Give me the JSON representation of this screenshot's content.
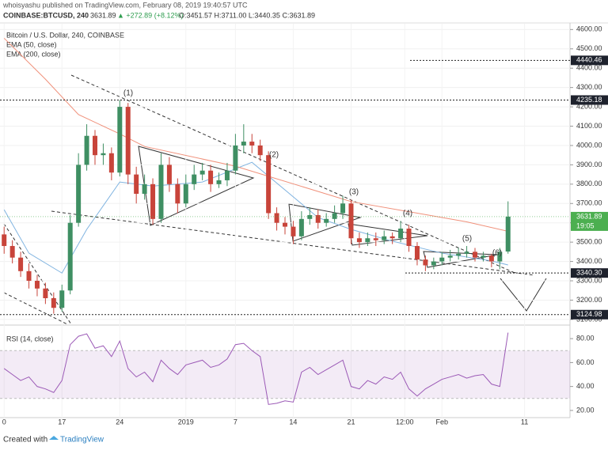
{
  "header": {
    "publisher": "whoisyashu published on TradingView.com, February 08, 2019 19:40:57 UTC",
    "symbol": "COINBASE:BTCUSD, 240",
    "last": "3631.89",
    "change": "▲ +272.89 (+8.12%)",
    "ohlc": "O:3451.57 H:3711.00 L:3440.35 C:3631.89"
  },
  "footer": {
    "created": "Created with",
    "brand": "TradingView"
  },
  "chart_data": [
    {
      "type": "candlestick",
      "title": "Bitcoin / U.S. Dollar, 240, COINBASE",
      "up_color": "#3f8f63",
      "down_color": "#c8443a",
      "open": [
        3540,
        3480,
        3420,
        3350,
        3300,
        3260,
        3210,
        3160,
        3250,
        3600,
        3900,
        4050,
        3950,
        3960,
        3860,
        4200,
        3850,
        3750,
        3800,
        3620,
        3900,
        3800,
        3700,
        3800,
        3850,
        3870,
        3800,
        3820,
        3870,
        4000,
        4020,
        4000,
        3950,
        3650,
        3600,
        3580,
        3530,
        3620,
        3640,
        3600,
        3620,
        3650,
        3700,
        3520,
        3500,
        3520,
        3510,
        3530,
        3520,
        3570,
        3480,
        3410,
        3380,
        3400,
        3420,
        3430,
        3440,
        3450,
        3420,
        3430,
        3400,
        3451.57
      ],
      "high": [
        3580,
        3510,
        3450,
        3390,
        3330,
        3290,
        3240,
        3280,
        3640,
        3960,
        4110,
        4080,
        4010,
        3990,
        4235,
        4220,
        3890,
        3850,
        3830,
        3960,
        3940,
        3830,
        3850,
        3900,
        3910,
        3900,
        3860,
        3910,
        4060,
        4110,
        4060,
        4030,
        3970,
        3680,
        3630,
        3610,
        3660,
        3680,
        3670,
        3650,
        3690,
        3740,
        3720,
        3550,
        3550,
        3550,
        3560,
        3550,
        3610,
        3590,
        3500,
        3430,
        3420,
        3450,
        3460,
        3470,
        3480,
        3470,
        3450,
        3440,
        3470,
        3711
      ],
      "low": [
        3440,
        3390,
        3320,
        3260,
        3220,
        3180,
        3130,
        3140,
        3230,
        3580,
        3870,
        3900,
        3900,
        3820,
        3840,
        3800,
        3700,
        3720,
        3590,
        3600,
        3760,
        3650,
        3680,
        3770,
        3820,
        3760,
        3780,
        3790,
        3850,
        3960,
        3960,
        3920,
        3620,
        3560,
        3540,
        3490,
        3510,
        3590,
        3570,
        3580,
        3600,
        3620,
        3490,
        3470,
        3480,
        3480,
        3490,
        3490,
        3500,
        3450,
        3380,
        3350,
        3360,
        3380,
        3400,
        3410,
        3420,
        3400,
        3400,
        3370,
        3360,
        3440.35
      ],
      "close": [
        3480,
        3420,
        3350,
        3300,
        3260,
        3210,
        3160,
        3250,
        3600,
        3900,
        4050,
        3950,
        3960,
        3860,
        4200,
        3850,
        3750,
        3800,
        3620,
        3900,
        3800,
        3700,
        3800,
        3850,
        3870,
        3800,
        3820,
        3870,
        4000,
        4020,
        4000,
        3950,
        3650,
        3600,
        3580,
        3530,
        3620,
        3640,
        3600,
        3620,
        3650,
        3700,
        3520,
        3500,
        3520,
        3510,
        3530,
        3520,
        3570,
        3480,
        3410,
        3380,
        3400,
        3420,
        3430,
        3440,
        3450,
        3420,
        3430,
        3400,
        3450,
        3631.89
      ],
      "series": [
        {
          "name": "EMA (50, close)",
          "color": "#7fb3e0",
          "x": [
            0,
            3,
            7,
            10,
            14,
            18,
            24,
            30,
            34,
            38,
            42,
            47,
            53,
            59,
            61
          ],
          "values": [
            3668,
            3443,
            3340,
            3566,
            3811,
            3790,
            3811,
            3913,
            3770,
            3627,
            3566,
            3505,
            3443,
            3403,
            3382
          ]
        },
        {
          "name": "EMA (200, close)",
          "color": "#f0907a",
          "x": [
            0,
            5,
            9,
            14,
            17,
            28,
            42,
            56,
            61
          ],
          "values": [
            4555,
            4343,
            4160,
            4060,
            3995,
            3893,
            3710,
            3605,
            3556
          ]
        }
      ],
      "xlim": [
        -0.5,
        68.5
      ],
      "ylim": [
        3075,
        4630
      ],
      "xticks": [
        {
          "value": 0,
          "label": "0"
        },
        {
          "value": 7,
          "label": "17"
        },
        {
          "value": 14,
          "label": "24"
        },
        {
          "value": 22,
          "label": "2019"
        },
        {
          "value": 28,
          "label": "7"
        },
        {
          "value": 35,
          "label": "14"
        },
        {
          "value": 42,
          "label": "21"
        },
        {
          "value": 48.5,
          "label": "12:00"
        },
        {
          "value": 53,
          "label": "Feb"
        },
        {
          "value": 63,
          "label": "11"
        }
      ],
      "yticks": [
        {
          "value": 3100,
          "label": "3100.00"
        },
        {
          "value": 3200,
          "label": "3200.00"
        },
        {
          "value": 3300,
          "label": "3300.00"
        },
        {
          "value": 3400,
          "label": "3400.00"
        },
        {
          "value": 3500,
          "label": "3500.00"
        },
        {
          "value": 3600,
          "label": "3600.00"
        },
        {
          "value": 3700,
          "label": "3700.00"
        },
        {
          "value": 3800,
          "label": "3800.00"
        },
        {
          "value": 3900,
          "label": "3900.00"
        },
        {
          "value": 4000,
          "label": "4000.00"
        },
        {
          "value": 4100,
          "label": "4100.00"
        },
        {
          "value": 4200,
          "label": "4200.00"
        },
        {
          "value": 4300,
          "label": "4300.00"
        },
        {
          "value": 4400,
          "label": "4400.00"
        },
        {
          "value": 4500,
          "label": "4500.00"
        },
        {
          "value": 4600,
          "label": "4600.00"
        }
      ],
      "levels": [
        4440.46,
        4235.18,
        {
          "value": 3340.3,
          "label": "3340.30"
        },
        3124.98
      ],
      "last_price": 3631.89,
      "last_color": "#4caf50",
      "countdown": "19:05",
      "annotations": [
        "(1)",
        "(2)",
        "(3)",
        "(4)",
        "(5)",
        "(6)"
      ]
    },
    {
      "type": "line",
      "title": "RSI (14, close)",
      "color": "#9b59b6",
      "values": [
        55,
        50,
        45,
        48,
        40,
        38,
        35,
        45,
        75,
        82,
        84,
        72,
        74,
        65,
        78,
        55,
        48,
        52,
        44,
        62,
        55,
        50,
        58,
        60,
        62,
        56,
        58,
        63,
        75,
        76,
        70,
        65,
        25,
        26,
        28,
        27,
        52,
        56,
        50,
        54,
        58,
        62,
        40,
        38,
        45,
        42,
        48,
        46,
        52,
        38,
        32,
        38,
        42,
        46,
        48,
        50,
        47,
        49,
        50,
        42,
        40,
        85
      ],
      "band": [
        30,
        70
      ],
      "xlim": [
        -0.5,
        68.5
      ],
      "ylim": [
        14,
        90
      ],
      "yticks": [
        {
          "value": 20,
          "label": "20.00"
        },
        {
          "value": 40,
          "label": "40.00"
        },
        {
          "value": 60,
          "label": "60.00"
        },
        {
          "value": 80,
          "label": "80.00"
        }
      ]
    }
  ]
}
